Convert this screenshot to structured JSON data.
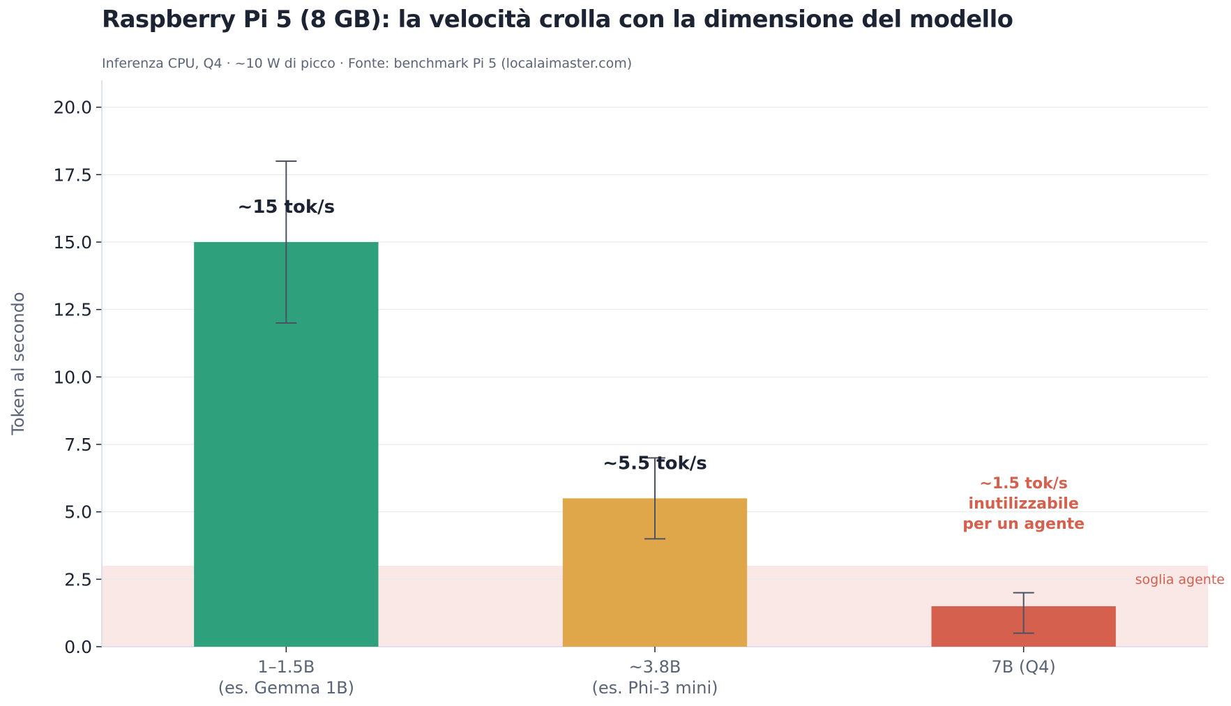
{
  "chart_data": {
    "type": "bar",
    "title": "Raspberry Pi 5 (8 GB): la velocità crolla con la dimensione del modello",
    "subtitle": "Inferenza CPU, Q4 · ~10 W di picco · Fonte: benchmark Pi 5 (localaimaster.com)",
    "xlabel": "",
    "ylabel": "Token al secondo",
    "ylim": [
      0,
      21
    ],
    "yticks": [
      "0.0",
      "2.5",
      "5.0",
      "7.5",
      "10.0",
      "12.5",
      "15.0",
      "17.5",
      "20.0"
    ],
    "grid": true,
    "categories": [
      [
        "1–1.5B",
        "(es. Gemma 1B)"
      ],
      [
        "~3.8B",
        "(es. Phi-3 mini)"
      ],
      [
        "7B (Q4)"
      ]
    ],
    "values": [
      15,
      5.5,
      1.5
    ],
    "error_low": [
      12,
      4,
      0.5
    ],
    "error_high": [
      18,
      7,
      2
    ],
    "bar_colors": [
      "#2ea07b",
      "#e0a64a",
      "#d5604d"
    ],
    "value_labels": [
      [
        "~15 tok/s"
      ],
      [
        "~5.5 tok/s"
      ],
      [
        "~1.5 tok/s",
        "inutilizzabile",
        "per un agente"
      ]
    ],
    "value_label_colors": [
      "#1c2333",
      "#1c2333",
      "#d5604d"
    ],
    "threshold": {
      "label": "soglia agente",
      "value": 3,
      "color": "#fae8e6",
      "label_color": "#d5604d"
    }
  }
}
